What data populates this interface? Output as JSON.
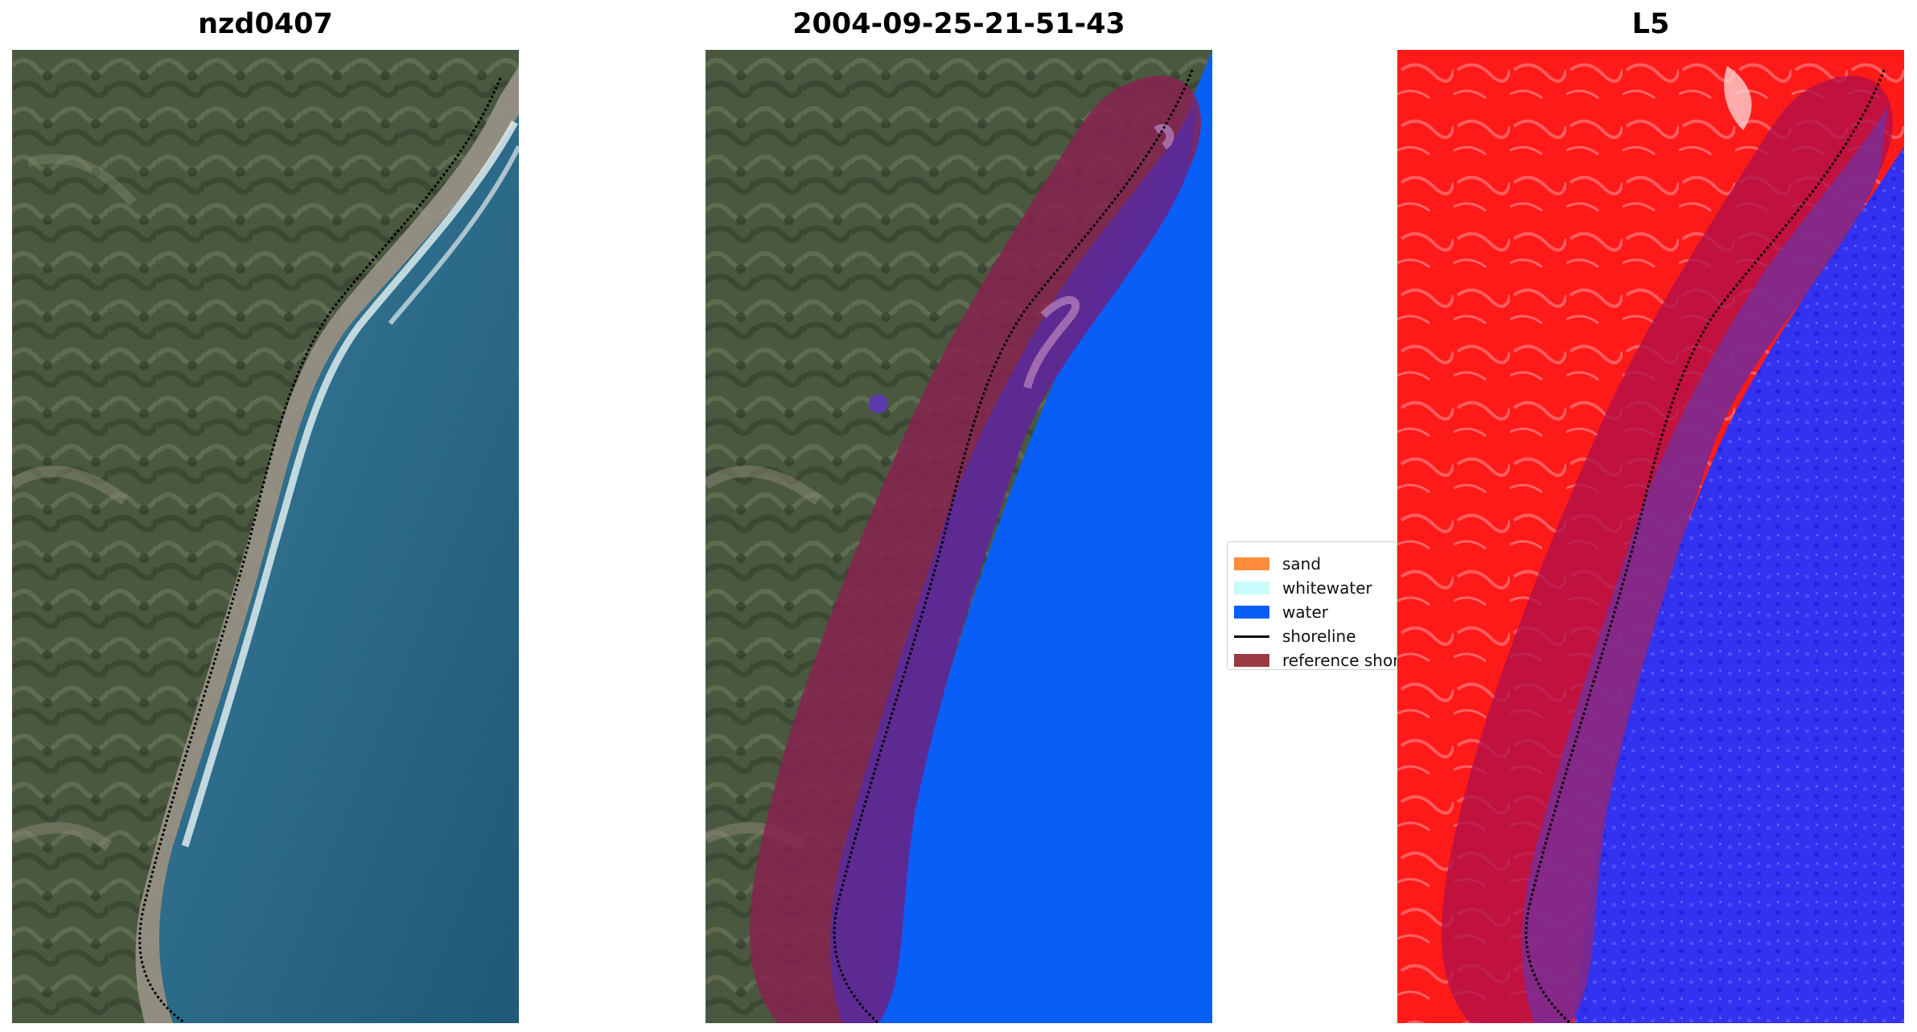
{
  "panels": [
    {
      "title": "nzd0407",
      "type": "rgb-image"
    },
    {
      "title": "2004-09-25-21-51-43",
      "type": "classified-image"
    },
    {
      "title": "L5",
      "type": "index-image"
    }
  ],
  "legend": {
    "items": [
      {
        "label": "sand",
        "color": "#ff8c3a"
      },
      {
        "label": "whitewater",
        "color": "#c8fcfc"
      },
      {
        "label": "water",
        "color": "#0a5ef8"
      },
      {
        "label": "shoreline",
        "color": "#000000",
        "kind": "line"
      },
      {
        "label": "reference shoreline buffer",
        "color": "#9a3a40"
      }
    ]
  },
  "colors": {
    "land_dark": "#3e4b34",
    "land_mid": "#5a6448",
    "land_light": "#8a8a78",
    "sea": "#2b6a88",
    "sea_deep": "#1f5a78",
    "water_class": "#0a5ef8",
    "buffer": "#8a2050",
    "buffer_over_water": "#5a2a9a",
    "index_land": "#ff1a1a",
    "index_water": "#2a2af0"
  }
}
